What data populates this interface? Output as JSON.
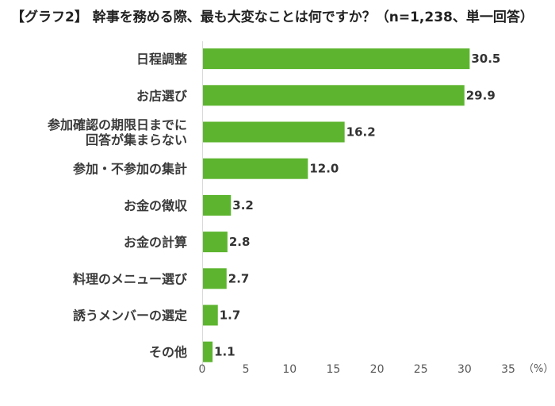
{
  "chart_data": {
    "type": "bar",
    "orientation": "horizontal",
    "title": "【グラフ2】 幹事を務める際、最も大変なことは何ですか？（n=1,238、単一回答）",
    "categories": [
      [
        "日程調整"
      ],
      [
        "お店選び"
      ],
      [
        "参加確認の期限日までに",
        "回答が集まらない"
      ],
      [
        "参加・不参加の集計"
      ],
      [
        "お金の徴収"
      ],
      [
        "お金の計算"
      ],
      [
        "料理のメニュー選び"
      ],
      [
        "誘うメンバーの選定"
      ],
      [
        "その他"
      ]
    ],
    "values": [
      30.5,
      29.9,
      16.2,
      12.0,
      3.2,
      2.8,
      2.7,
      1.7,
      1.1
    ],
    "value_labels": [
      "30.5",
      "29.9",
      "16.2",
      "12.0",
      "3.2",
      "2.8",
      "2.7",
      "1.7",
      "1.1"
    ],
    "xlim": [
      0,
      35
    ],
    "xticks": [
      0,
      5,
      10,
      15,
      20,
      25,
      30,
      35
    ],
    "unit": "（%）",
    "bar_color": "#5db52f",
    "grid": false,
    "legend": "none"
  }
}
